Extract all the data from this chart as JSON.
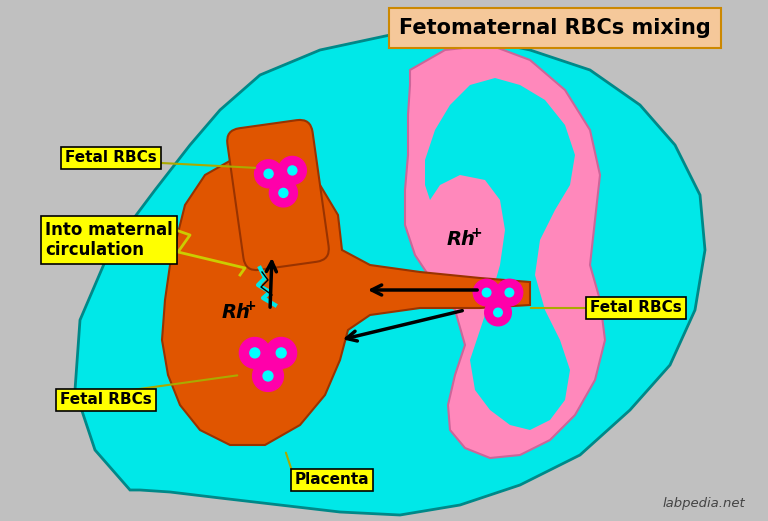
{
  "bg_color": "#c0c0c0",
  "uterus_fill": "#00e8e8",
  "uterus_edge": "#008888",
  "placenta_fill": "#e05500",
  "placenta_edge": "#993300",
  "fetus_fill": "#ff88bb",
  "fetus_edge": "#cc6699",
  "vessel_fill": "#e05500",
  "rbc_color": "#ff00aa",
  "rbc_dot_color": "#00ffff",
  "title_text": "Fetomaternal RBCs mixing",
  "title_bg": "#f5c89a",
  "title_edge": "#cc8800",
  "label_bg": "#ffff00",
  "label_edge": "#000000",
  "arrow_color": "#000000",
  "watermark": "labpedia.net",
  "label_fetal_top": "Fetal RBCs",
  "label_into_maternal": "Into maternal\ncirculation",
  "label_fetal_bottom": "Fetal RBCs",
  "label_fetal_right": "Fetal RBCs",
  "label_placenta": "Placenta",
  "rh_left": "Rh",
  "rh_right": "Rh"
}
